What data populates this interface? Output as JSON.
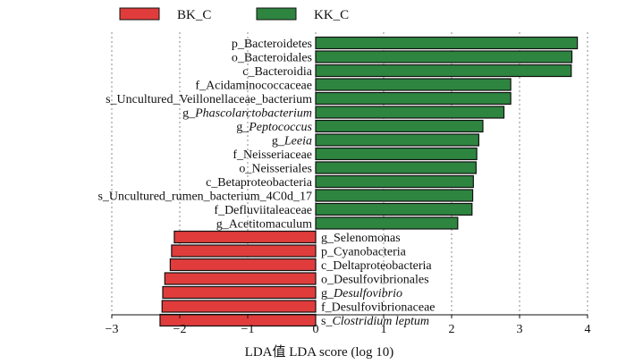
{
  "chart_data": {
    "type": "bar",
    "orientation": "horizontal",
    "xlabel": "LDA值  LDA score (log 10)",
    "xlim": [
      -3,
      4
    ],
    "xticks": [
      "−3",
      "−2",
      "−1",
      "0",
      "1",
      "2",
      "3",
      "4"
    ],
    "xtick_values": [
      -3,
      -2,
      -1,
      0,
      1,
      2,
      3,
      4
    ],
    "grid": "vertical dotted at ticks",
    "legend": {
      "placement": "top-left",
      "entries": [
        {
          "name": "BK_C",
          "color": "#e03c3c"
        },
        {
          "name": "KK_C",
          "color": "#2e8540"
        }
      ]
    },
    "series": [
      {
        "name": "KK_C",
        "color": "#2e8540",
        "bars": [
          {
            "label": "p_Bacteroidetes",
            "value": 3.85,
            "italic_part": ""
          },
          {
            "label": "o_Bacteroidales",
            "value": 3.77,
            "italic_part": ""
          },
          {
            "label": "c_Bacteroidia",
            "value": 3.76,
            "italic_part": ""
          },
          {
            "label": "f_Acidaminococcaceae",
            "value": 2.87,
            "italic_part": ""
          },
          {
            "label": "s_Uncultured_Veillonellaceae_bacterium",
            "value": 2.87,
            "italic_part": ""
          },
          {
            "label": "g_Phascolarctobacterium",
            "value": 2.77,
            "italic_part": "Phascolarctobacterium"
          },
          {
            "label": "g_Peptococcus",
            "value": 2.46,
            "italic_part": "Peptococcus"
          },
          {
            "label": "g_Leeia",
            "value": 2.4,
            "italic_part": "Leeia"
          },
          {
            "label": "f_Neisseriaceae",
            "value": 2.37,
            "italic_part": ""
          },
          {
            "label": "o_Neisseriales",
            "value": 2.36,
            "italic_part": ""
          },
          {
            "label": "c_Betaproteobacteria",
            "value": 2.32,
            "italic_part": ""
          },
          {
            "label": "s_Uncultured_rumen_bacterium_4C0d_17",
            "value": 2.31,
            "italic_part": ""
          },
          {
            "label": "f_Defluviitaleaceae",
            "value": 2.3,
            "italic_part": ""
          },
          {
            "label": "g_Acetitomaculum",
            "value": 2.09,
            "italic_part": ""
          }
        ]
      },
      {
        "name": "BK_C",
        "color": "#e03c3c",
        "bars": [
          {
            "label": "g_Selenomonas",
            "value": -2.08,
            "italic_part": ""
          },
          {
            "label": "p_Cyanobacteria",
            "value": -2.12,
            "italic_part": ""
          },
          {
            "label": "c_Deltaproteobacteria",
            "value": -2.14,
            "italic_part": ""
          },
          {
            "label": "o_Desulfovibrionales",
            "value": -2.22,
            "italic_part": ""
          },
          {
            "label": "g_Desulfovibrio",
            "value": -2.25,
            "italic_part": "Desulfovibrio"
          },
          {
            "label": "f_Desulfovibrionaceae",
            "value": -2.26,
            "italic_part": ""
          },
          {
            "label": "s_Clostridium leptum",
            "value": -2.29,
            "italic_part": "Clostridium leptum"
          }
        ]
      }
    ]
  }
}
